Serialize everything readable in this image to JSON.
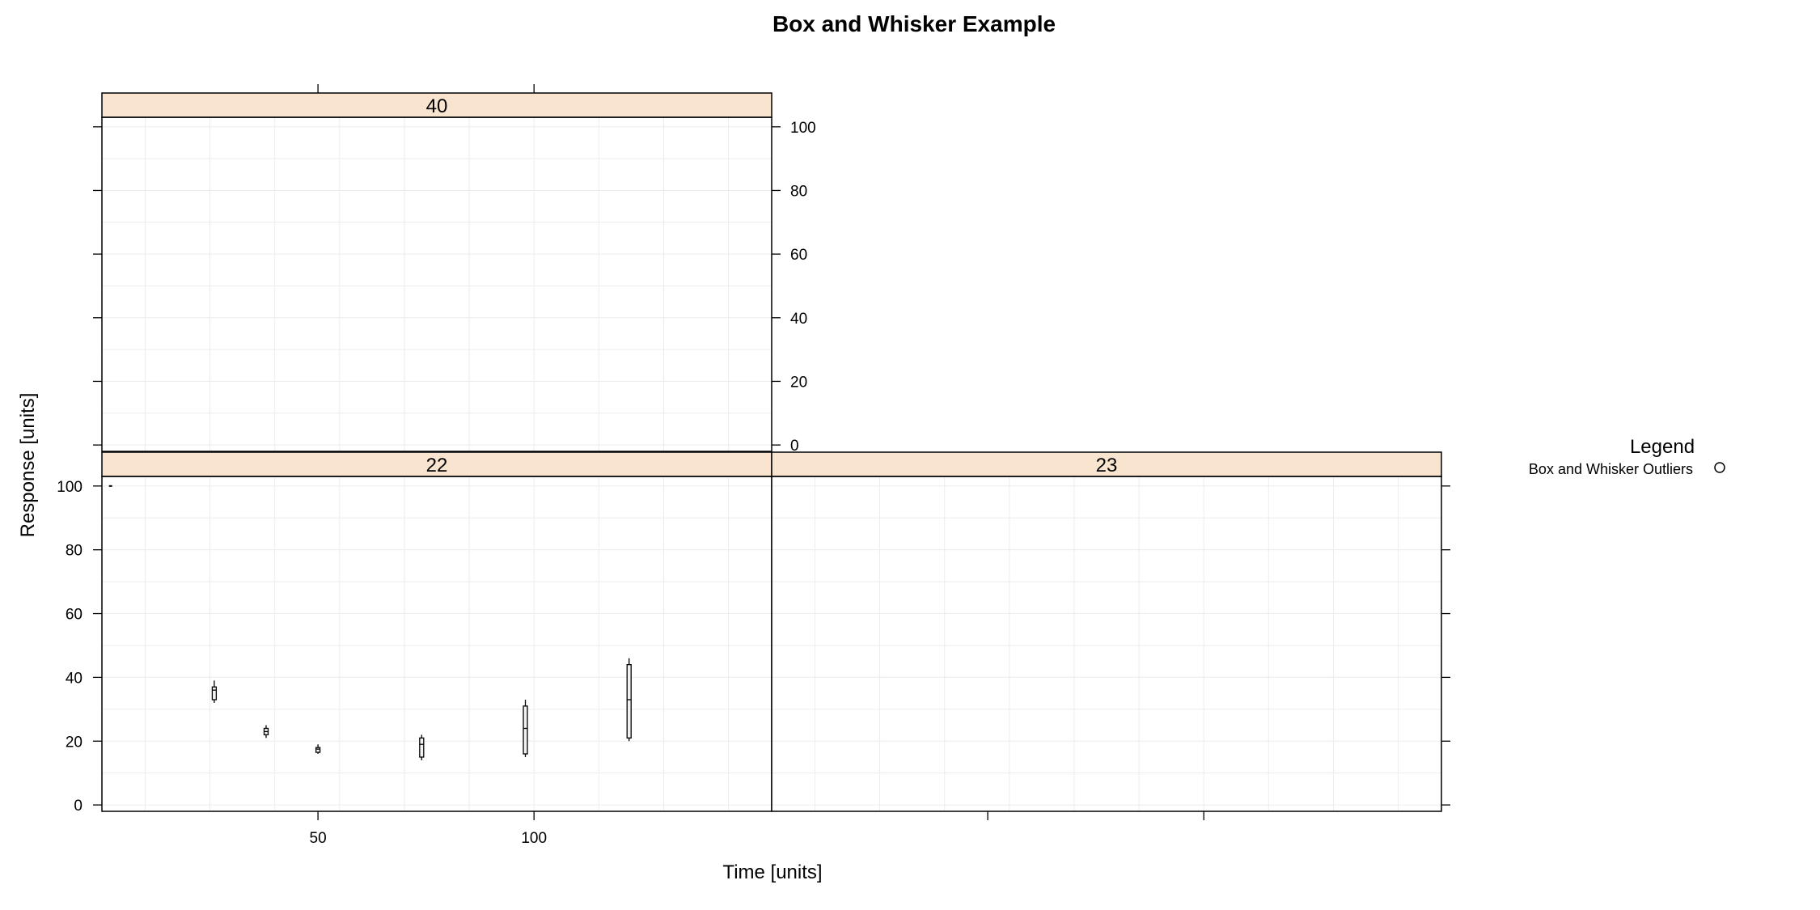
{
  "chart_data": {
    "type": "box",
    "title": "Box and Whisker Example",
    "xlabel": "Time [units]",
    "ylabel": "Response [units]",
    "xlim": [
      0,
      155
    ],
    "ylim": [
      -2,
      103
    ],
    "x_ticks": [
      50,
      100
    ],
    "y_ticks": [
      0,
      20,
      40,
      60,
      80,
      100
    ],
    "grid": true,
    "strip_color": "#F9E5CF",
    "legend": {
      "title": "Legend",
      "position": "right",
      "entries": [
        {
          "label": "Box and Whisker Outliers",
          "symbol": "open-circle"
        }
      ]
    },
    "panels": [
      {
        "id": "40",
        "label": "40",
        "boxes": []
      },
      {
        "id": "22",
        "label": "22",
        "boxes": [
          {
            "x": 26,
            "min": 32,
            "q1": 33,
            "median": 36,
            "q3": 37,
            "max": 39
          },
          {
            "x": 38,
            "min": 21,
            "q1": 22,
            "median": 23,
            "q3": 24,
            "max": 25
          },
          {
            "x": 50,
            "min": 16,
            "q1": 16.5,
            "median": 17.5,
            "q3": 18,
            "max": 19
          },
          {
            "x": 74,
            "min": 14,
            "q1": 15,
            "median": 19,
            "q3": 21,
            "max": 22
          },
          {
            "x": 98,
            "min": 15,
            "q1": 16,
            "median": 24,
            "q3": 31,
            "max": 33
          },
          {
            "x": 122,
            "min": 20,
            "q1": 21,
            "median": 33,
            "q3": 44,
            "max": 46
          }
        ],
        "outliers": [
          {
            "x": 2,
            "y": 100
          }
        ]
      },
      {
        "id": "23",
        "label": "23",
        "boxes": []
      }
    ]
  }
}
